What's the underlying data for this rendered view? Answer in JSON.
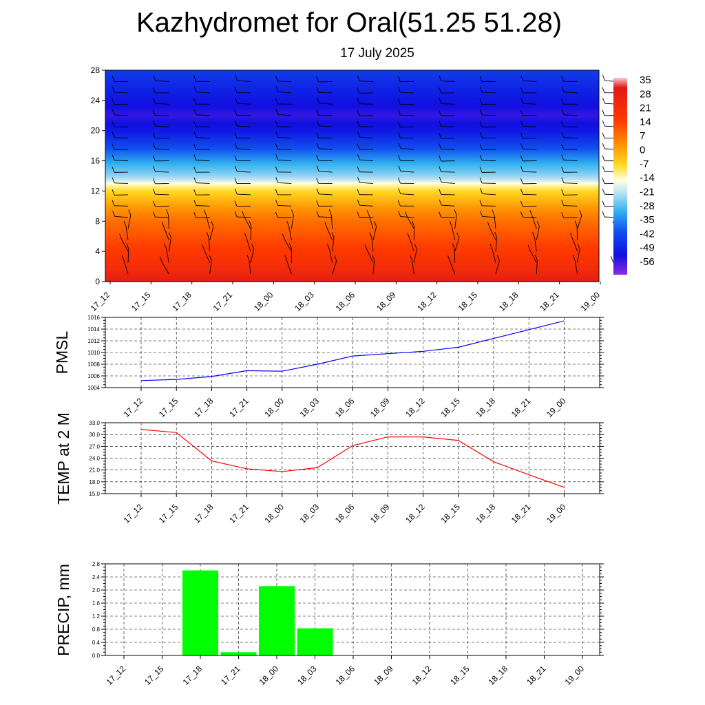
{
  "title": "Kazhydromet for Oral(51.25 51.28)",
  "subtitle": "17 July 2025",
  "time_labels": [
    "17_12",
    "17_15",
    "17_18",
    "17_21",
    "18_00",
    "18_03",
    "18_06",
    "18_09",
    "18_12",
    "18_15",
    "18_18",
    "18_21",
    "19_00"
  ],
  "colors": {
    "pmsl_line": "#0000ff",
    "temp_line": "#ff0000",
    "precip_bar": "#00ff00",
    "grid": "#000000"
  },
  "chart_data": [
    {
      "type": "heatmap",
      "title": "",
      "ylabel": "",
      "ylim": [
        0,
        28
      ],
      "yticks": [
        "0",
        "4",
        "8",
        "12",
        "16",
        "20",
        "24",
        "28"
      ],
      "x": [
        "17_12",
        "17_15",
        "17_18",
        "17_21",
        "18_00",
        "18_03",
        "18_06",
        "18_09",
        "18_12",
        "18_15",
        "18_18",
        "18_21",
        "19_00"
      ],
      "colorbar_labels": [
        "35",
        "28",
        "21",
        "14",
        "7",
        "0",
        "-7",
        "-14",
        "-21",
        "-28",
        "-35",
        "-42",
        "-49",
        "-56"
      ],
      "colorbar_range": [
        -63,
        42
      ],
      "temperature_profile": {
        "height": [
          0,
          2,
          4,
          6,
          8,
          10,
          12,
          13,
          14,
          16,
          18,
          20,
          22,
          24,
          26,
          28
        ],
        "value": [
          33,
          26,
          22,
          18,
          14,
          8,
          0,
          -9,
          -18,
          -30,
          -42,
          -54,
          -58,
          -55,
          -50,
          -45
        ]
      },
      "overlay": "wind barbs"
    },
    {
      "type": "line",
      "ylabel": "PMSL",
      "ylim": [
        1004,
        1016
      ],
      "yticks": [
        "1004",
        "1006",
        "1008",
        "1010",
        "1012",
        "1014",
        "1016"
      ],
      "x": [
        "17_12",
        "17_15",
        "17_18",
        "17_21",
        "18_00",
        "18_03",
        "18_06",
        "18_09",
        "18_12",
        "18_15",
        "18_18",
        "18_21",
        "19_00"
      ],
      "values": [
        1005.2,
        1005.4,
        1005.9,
        1006.9,
        1006.8,
        1008.0,
        1009.4,
        1009.8,
        1010.2,
        1010.9,
        1012.4,
        1013.9,
        1015.4
      ]
    },
    {
      "type": "line",
      "ylabel": "TEMP at 2 M",
      "ylim": [
        15,
        33
      ],
      "yticks": [
        "15.0",
        "18.0",
        "21.0",
        "24.0",
        "27.0",
        "30.0",
        "33.0"
      ],
      "x": [
        "17_12",
        "17_15",
        "17_18",
        "17_21",
        "18_00",
        "18_03",
        "18_06",
        "18_09",
        "18_12",
        "18_15",
        "18_18",
        "18_21",
        "19_00"
      ],
      "values": [
        31.3,
        30.5,
        23.3,
        21.3,
        20.6,
        21.6,
        27.2,
        29.4,
        29.4,
        28.5,
        23.1,
        19.8,
        16.6
      ]
    },
    {
      "type": "bar",
      "ylabel": "PRECIP, mm",
      "ylim": [
        0,
        2.8
      ],
      "yticks": [
        "0.0",
        "0.4",
        "0.8",
        "1.2",
        "1.6",
        "2.0",
        "2.4",
        "2.8"
      ],
      "categories": [
        "17_12",
        "17_15",
        "17_18",
        "17_21",
        "18_00",
        "18_03",
        "18_06",
        "18_09",
        "18_12",
        "18_15",
        "18_18",
        "18_21",
        "19_00"
      ],
      "values": [
        0,
        0,
        2.6,
        0.1,
        2.12,
        0.83,
        0,
        0,
        0,
        0,
        0,
        0,
        0
      ]
    }
  ]
}
